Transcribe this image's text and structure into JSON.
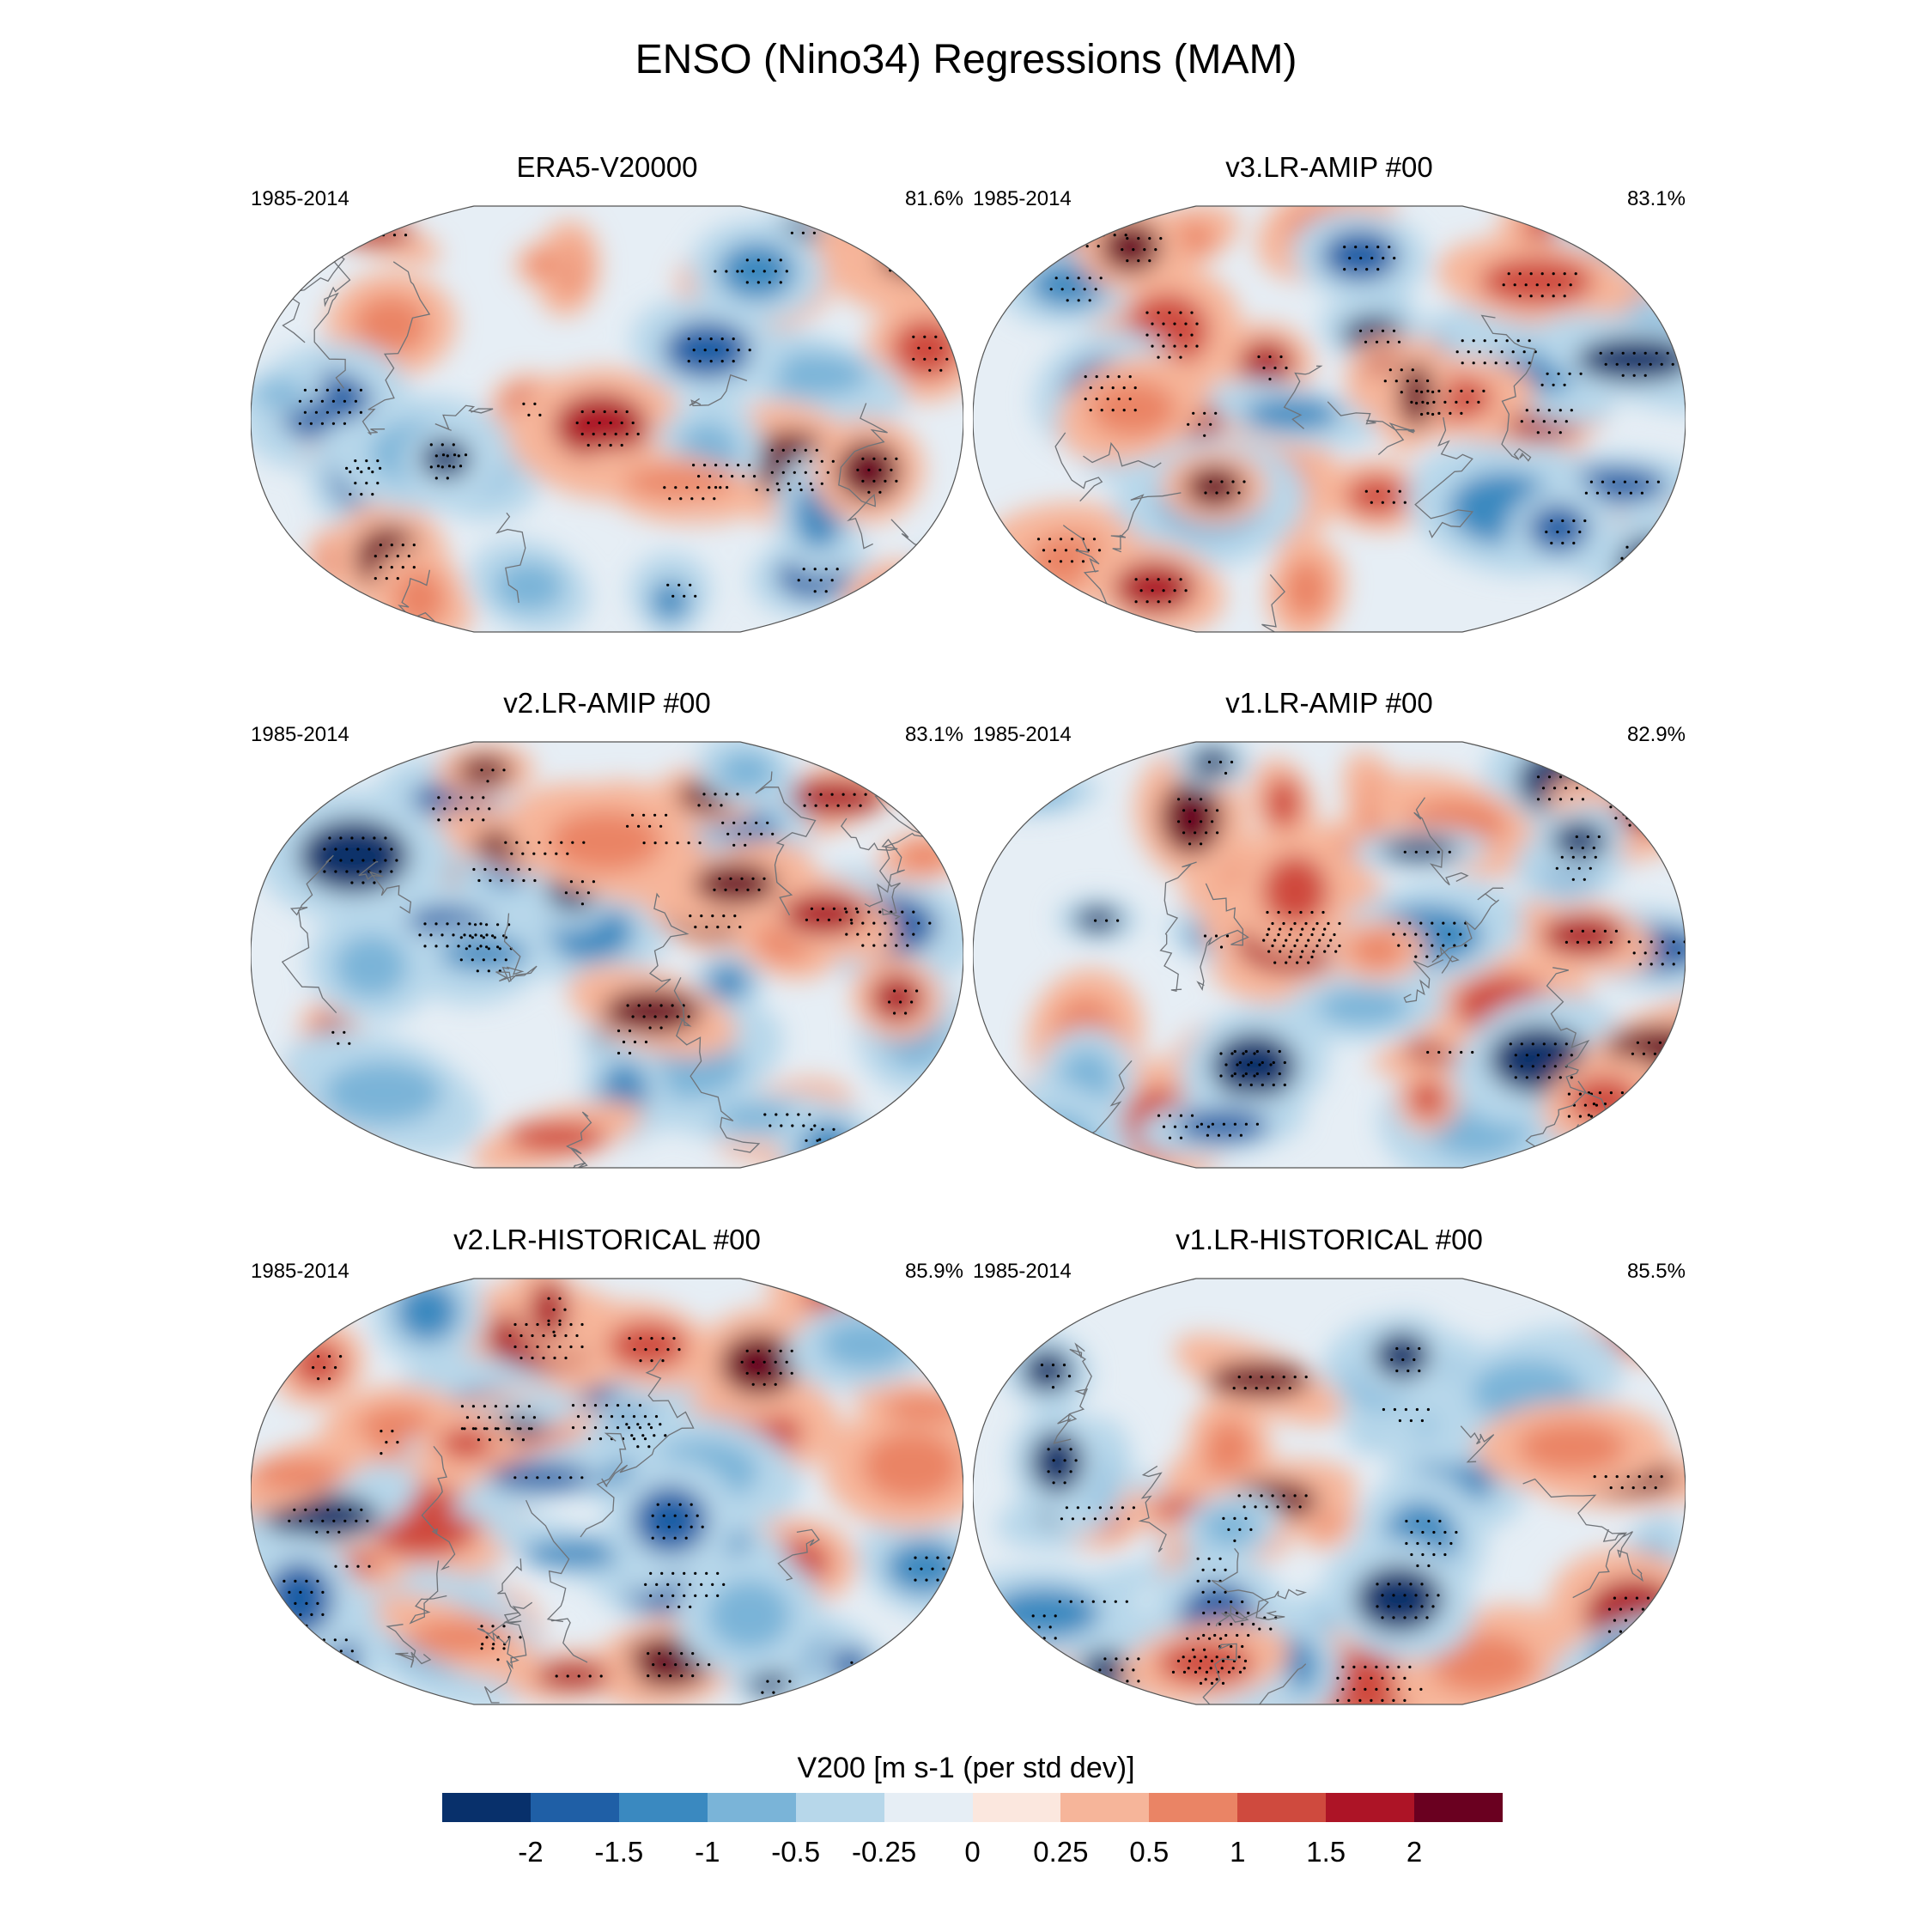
{
  "title": "ENSO (Nino34) Regressions (MAM)",
  "panels": [
    {
      "title": "ERA5-V20000",
      "period": "1985-2014",
      "pct": "81.6%"
    },
    {
      "title": "v3.LR-AMIP  #00",
      "period": "1985-2014",
      "pct": "83.1%"
    },
    {
      "title": "v2.LR-AMIP  #00",
      "period": "1985-2014",
      "pct": "83.1%"
    },
    {
      "title": "v1.LR-AMIP  #00",
      "period": "1985-2014",
      "pct": "82.9%"
    },
    {
      "title": "v2.LR-HISTORICAL  #00",
      "period": "1985-2014",
      "pct": "85.9%"
    },
    {
      "title": "v1.LR-HISTORICAL  #00",
      "period": "1985-2014",
      "pct": "85.5%"
    }
  ],
  "colorbar": {
    "label": "V200 [m s-1 (per std dev)]",
    "colors": [
      "#08306b",
      "#1f5fa6",
      "#3a89c0",
      "#7ab4d8",
      "#b7d7ea",
      "#e6eef5",
      "#fbe7de",
      "#f6b59a",
      "#ea8465",
      "#cf4a3e",
      "#ad1426",
      "#6a0020"
    ],
    "ticks": [
      "-2",
      "-1.5",
      "-1",
      "-0.5",
      "-0.25",
      "0",
      "0.25",
      "0.5",
      "1",
      "1.5",
      "2"
    ]
  }
}
